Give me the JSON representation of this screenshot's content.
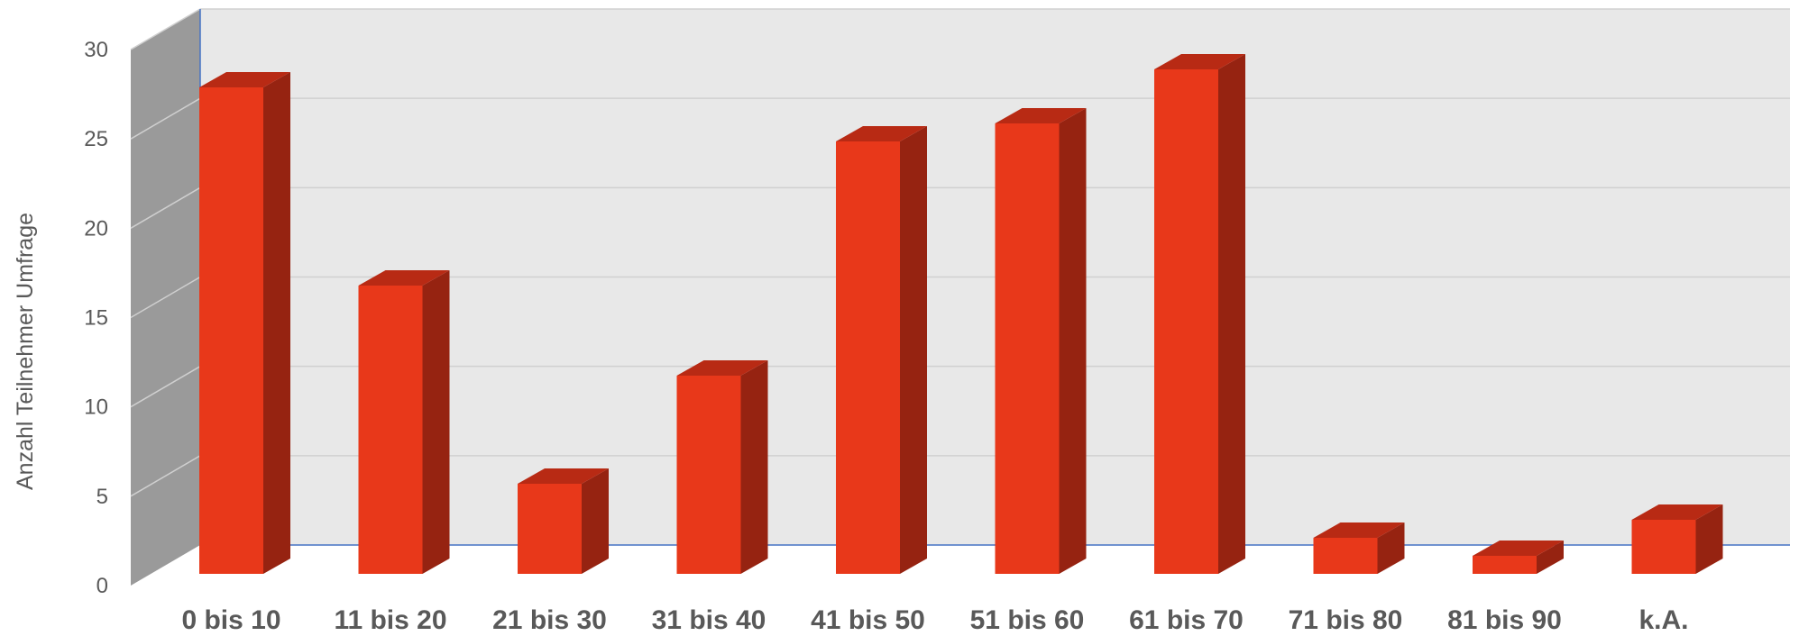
{
  "chart_data": {
    "type": "bar",
    "style": "3d-column",
    "title": "",
    "xlabel": "",
    "ylabel": "Anzahl Teilnehmer  Umfrage",
    "categories": [
      "0 bis 10",
      "11 bis 20",
      "21 bis 30",
      "31 bis 40",
      "41 bis 50",
      "51 bis 60",
      "61 bis 70",
      "71 bis 80",
      "81 bis 90",
      "k.A."
    ],
    "values": [
      27,
      16,
      5,
      11,
      24,
      25,
      28,
      2,
      1,
      3
    ],
    "ylim": [
      0,
      30
    ],
    "yticks": [
      "0",
      "5",
      "10",
      "15",
      "20",
      "25",
      "30"
    ],
    "grid": true,
    "legend": "none"
  },
  "colors": {
    "bar_front": "#E8381A",
    "bar_side": "#962311",
    "bar_top": "#B82A14",
    "wall_back": "#E8E8E8",
    "wall_side": "#9A9A9A",
    "grid": "#D0D0D0",
    "axis_line": "#4472C4",
    "text": "#595959"
  }
}
